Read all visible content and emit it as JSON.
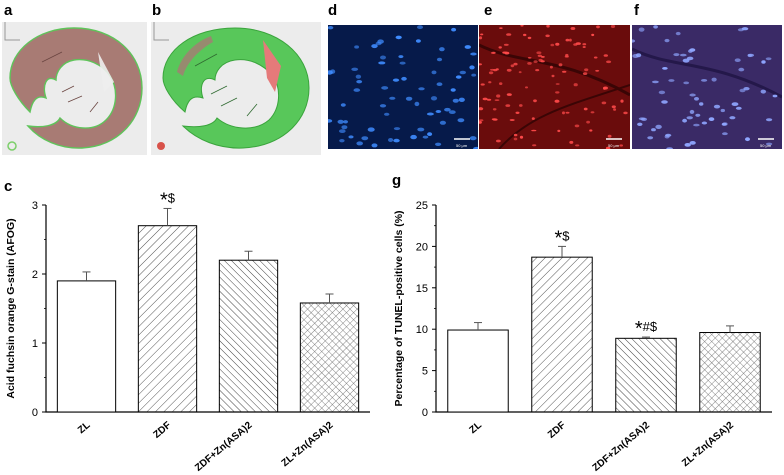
{
  "panels": {
    "a": "a",
    "b": "b",
    "c": "c",
    "d": "d",
    "e": "e",
    "f": "f",
    "g": "g"
  },
  "micrographs": {
    "scale_bar_label": "50 μm",
    "colors": {
      "tissue": "#a87b74",
      "fibrosis_overlay": "#58c75a",
      "dapi": "#1e6aff",
      "tunel": "#e02020",
      "merge_bg": "#3a2a66"
    }
  },
  "chart_data": [
    {
      "type": "bar",
      "panel": "c",
      "categories": [
        "ZL",
        "ZDF",
        "ZDF+Zn(ASA)2",
        "ZL+Zn(ASA)2"
      ],
      "values": [
        1.9,
        2.7,
        2.2,
        1.58
      ],
      "errors": [
        0.13,
        0.25,
        0.13,
        0.13
      ],
      "annotations": [
        "",
        "*$",
        "",
        ""
      ],
      "ylabel": "Acid fuchsin orange G-stain (AFOG)",
      "xlabel": "",
      "ylim": [
        0,
        3
      ],
      "yticks": [
        "0",
        "1",
        "2",
        "3"
      ],
      "patterns": [
        "none",
        "diag-fwd",
        "diag-back",
        "cross"
      ]
    },
    {
      "type": "bar",
      "panel": "g",
      "categories": [
        "ZL",
        "ZDF",
        "ZDF+Zn(ASA)2",
        "ZL+Zn(ASA)2"
      ],
      "values": [
        9.9,
        18.7,
        8.9,
        9.6
      ],
      "errors": [
        0.9,
        1.3,
        0.15,
        0.8
      ],
      "annotations": [
        "",
        "*$",
        "*#$",
        ""
      ],
      "ylabel": "Percentage of TUNEL-positive cells (%)",
      "xlabel": "",
      "ylim": [
        0,
        25
      ],
      "yticks": [
        "0",
        "5",
        "10",
        "15",
        "20",
        "25"
      ],
      "patterns": [
        "none",
        "diag-fwd",
        "diag-back",
        "cross"
      ]
    }
  ]
}
